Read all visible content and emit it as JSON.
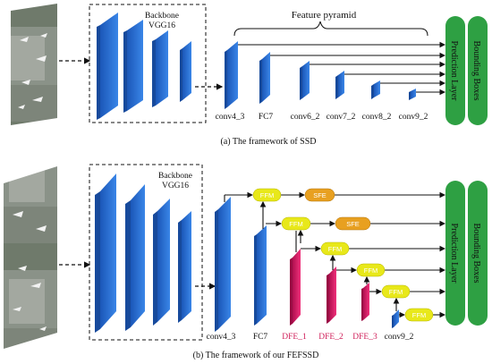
{
  "top": {
    "backbone_label_1": "Backbone",
    "backbone_label_2": "VGG16",
    "pyramid_label": "Feature pyramid",
    "layer_labels": [
      "conv4_3",
      "FC7",
      "conv6_2",
      "conv7_2",
      "conv8_2",
      "conv9_2"
    ],
    "prediction_layer": "Prediction Layer",
    "bounding_boxes": "Bounding Boxes",
    "caption": "(a)  The framework of  SSD"
  },
  "bottom": {
    "backbone_label_1": "Backbone",
    "backbone_label_2": "VGG16",
    "layer_labels": [
      "conv4_3",
      "FC7"
    ],
    "dfe_labels": [
      "DFE_1",
      "DFE_2",
      "DFE_3"
    ],
    "conv9_label": "conv9_2",
    "ffm_label": "FFM",
    "sfe_label": "SFE",
    "prediction_layer": "Prediction Layer",
    "bounding_boxes": "Bounding Boxes",
    "caption": "(b)  The framework of  our FEFSSD"
  },
  "colors": {
    "block_blue": "#2a6fd6",
    "block_dark": "#1a4fa0",
    "green": "#2ea043",
    "ffm_yellow": "#e8e81a",
    "sfe_orange": "#e8a020",
    "dfe_pink": "#e0206a",
    "dfe_text": "#d0205a"
  }
}
